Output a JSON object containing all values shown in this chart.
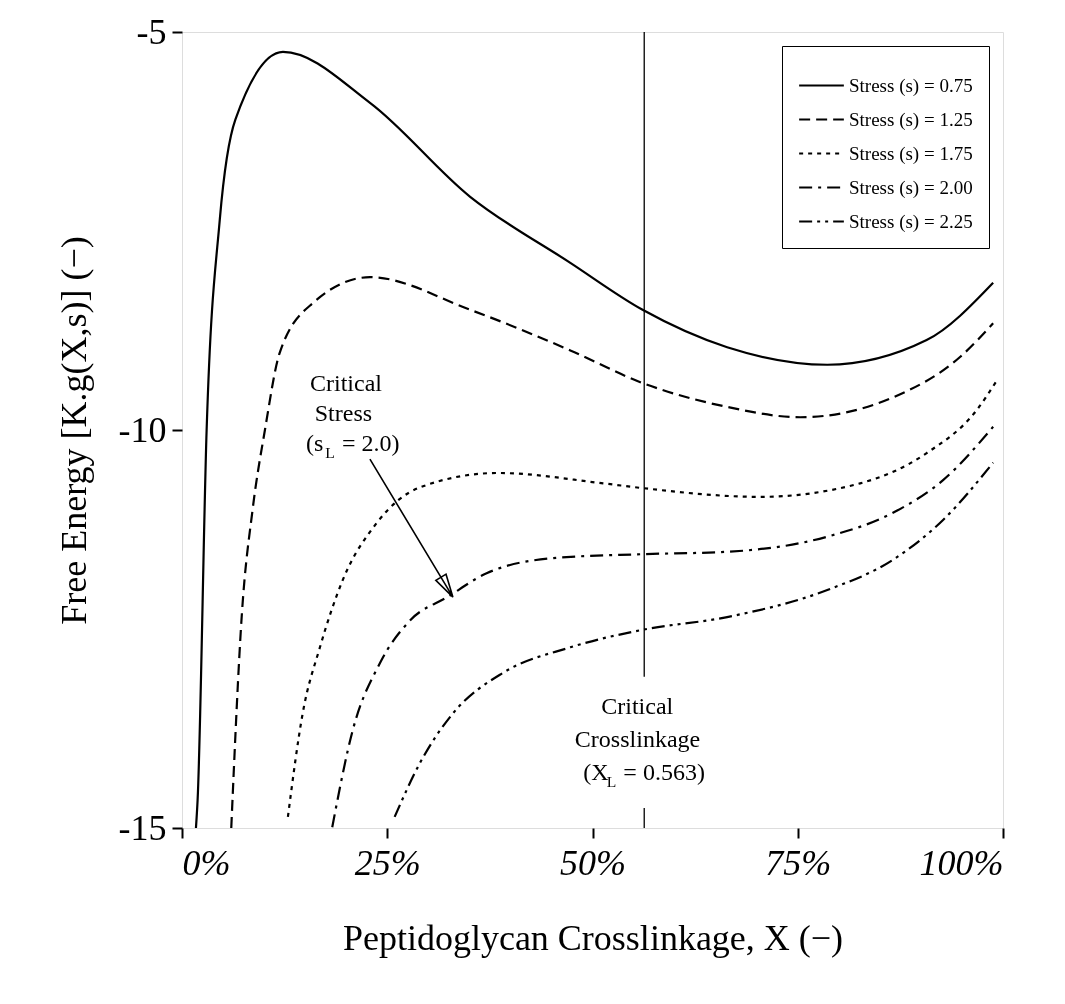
{
  "chart_data": {
    "type": "line",
    "xlabel": "Peptidoglycan Crosslinkage, X (−)",
    "ylabel": "Free Energy [K.g(X,s)] (−)",
    "xlim": [
      0,
      1
    ],
    "ylim": [
      -15,
      -5
    ],
    "xticks": [
      {
        "value": 0,
        "label": "0%"
      },
      {
        "value": 0.25,
        "label": "25%"
      },
      {
        "value": 0.5,
        "label": "50%"
      },
      {
        "value": 0.75,
        "label": "75%"
      },
      {
        "value": 1,
        "label": "100%"
      }
    ],
    "yticks": [
      -15,
      -10,
      -5
    ],
    "grid": false,
    "legend": "top right",
    "marker": "none",
    "series": [
      {
        "name": "Stress (s) = 0.75",
        "color": "#000000",
        "line_style": "solid",
        "x": [
          0.017,
          0.019,
          0.03,
          0.046,
          0.065,
          0.123,
          0.229,
          0.351,
          0.473,
          0.561,
          0.664,
          0.786,
          0.907,
          0.988
        ],
        "values": [
          -15.0,
          -14.65,
          -10.0,
          -7.36,
          -6.1,
          -5.25,
          -5.89,
          -7.07,
          -7.9,
          -8.49,
          -8.96,
          -9.18,
          -8.87,
          -8.15
        ]
      },
      {
        "name": "Stress (s) = 1.25",
        "color": "#000000",
        "line_style": "dashed",
        "x": [
          0.06,
          0.073,
          0.086,
          0.101,
          0.119,
          0.16,
          0.229,
          0.351,
          0.473,
          0.561,
          0.664,
          0.753,
          0.866,
          0.948,
          0.988
        ],
        "values": [
          -15.0,
          -12.3,
          -11.0,
          -10.0,
          -9.03,
          -8.4,
          -8.08,
          -8.49,
          -9.0,
          -9.41,
          -9.71,
          -9.84,
          -9.59,
          -9.08,
          -8.66
        ]
      },
      {
        "name": "Stress (s) = 1.75",
        "color": "#000000",
        "line_style": "dotted",
        "x": [
          0.129,
          0.147,
          0.168,
          0.196,
          0.237,
          0.29,
          0.384,
          0.513,
          0.561,
          0.704,
          0.826,
          0.907,
          0.968,
          0.993
        ],
        "values": [
          -14.86,
          -13.56,
          -12.73,
          -11.88,
          -11.17,
          -10.72,
          -10.54,
          -10.67,
          -10.73,
          -10.84,
          -10.67,
          -10.29,
          -9.75,
          -9.37
        ]
      },
      {
        "name": "Stress (s) = 2.00",
        "color": "#000000",
        "line_style": "dashdot",
        "x": [
          0.183,
          0.208,
          0.241,
          0.278,
          0.323,
          0.371,
          0.452,
          0.561,
          0.664,
          0.786,
          0.866,
          0.927,
          0.988
        ],
        "values": [
          -14.99,
          -13.77,
          -12.93,
          -12.39,
          -12.1,
          -11.8,
          -11.61,
          -11.56,
          -11.53,
          -11.34,
          -11.04,
          -10.63,
          -9.96
        ]
      },
      {
        "name": "Stress (s) = 2.25",
        "color": "#000000",
        "line_style": "dashdotdot",
        "x": [
          0.259,
          0.29,
          0.33,
          0.391,
          0.473,
          0.561,
          0.664,
          0.786,
          0.866,
          0.927,
          0.988
        ],
        "values": [
          -14.86,
          -14.18,
          -13.56,
          -13.05,
          -12.73,
          -12.51,
          -12.35,
          -12.01,
          -11.63,
          -11.13,
          -10.41
        ]
      }
    ],
    "ref_lines": [
      {
        "axis": "x",
        "value": 0.563,
        "label": "Critical\nCrosslinkage\n(X$_{L}$ = 0.563)",
        "color": "#000000",
        "line_style": "solid"
      }
    ],
    "annotations": [
      {
        "text": "Critical\nStress\n(s$_{L}$ = 2.0)",
        "x": 0.33,
        "y": -12.1
      }
    ]
  }
}
